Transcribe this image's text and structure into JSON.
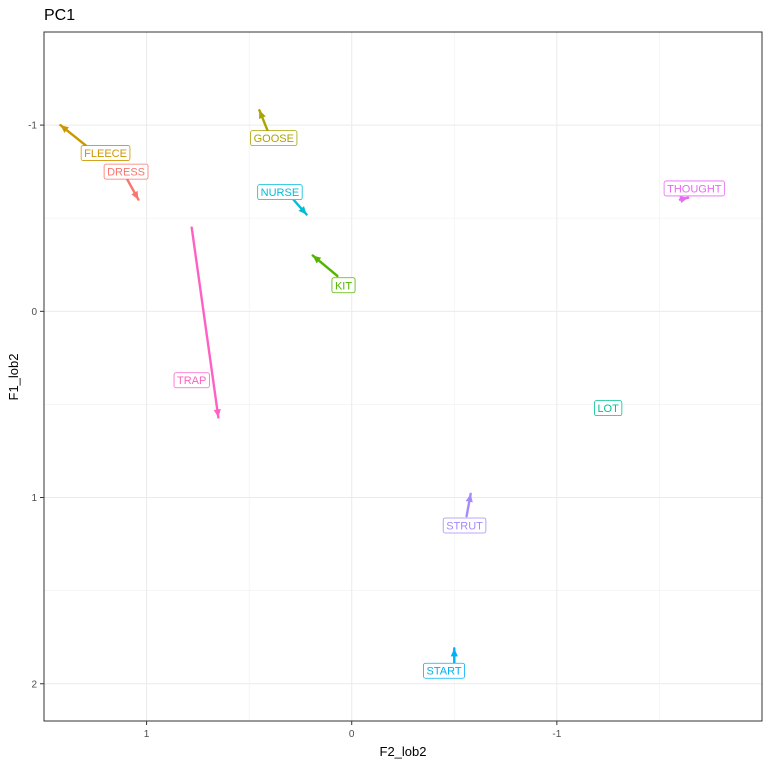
{
  "chart_data": {
    "type": "scatter",
    "title": "PC1",
    "xlabel": "F2_lob2",
    "ylabel": "F1_lob2",
    "x_reversed": true,
    "y_reversed": true,
    "xlim": [
      1.5,
      -2.0
    ],
    "ylim": [
      -1.5,
      2.2
    ],
    "x_ticks": [
      1,
      0,
      -1
    ],
    "x_tick_labels": [
      "1",
      "0",
      "-1"
    ],
    "y_ticks": [
      -1,
      0,
      1,
      2
    ],
    "y_tick_labels": [
      "-1",
      "0",
      "1",
      "2"
    ],
    "grid": true,
    "legend": "none",
    "series": [
      {
        "label": "FLEECE",
        "color": "#CD9600",
        "x_start": 1.25,
        "y_start": -0.85,
        "x_end": 1.42,
        "y_end": -1.0,
        "label_x": 1.2,
        "label_y": -0.85
      },
      {
        "label": "DRESS",
        "color": "#F8766D",
        "x_start": 1.1,
        "y_start": -0.72,
        "x_end": 1.04,
        "y_end": -0.6,
        "label_x": 1.1,
        "label_y": -0.75
      },
      {
        "label": "GOOSE",
        "color": "#ABA300",
        "x_start": 0.41,
        "y_start": -0.97,
        "x_end": 0.45,
        "y_end": -1.08,
        "label_x": 0.38,
        "label_y": -0.93
      },
      {
        "label": "NURSE",
        "color": "#00BCD8",
        "x_start": 0.3,
        "y_start": -0.62,
        "x_end": 0.22,
        "y_end": -0.52,
        "label_x": 0.35,
        "label_y": -0.64
      },
      {
        "label": "KIT",
        "color": "#53B400",
        "x_start": 0.07,
        "y_start": -0.19,
        "x_end": 0.19,
        "y_end": -0.3,
        "label_x": 0.04,
        "label_y": -0.14
      },
      {
        "label": "THOUGHT",
        "color": "#E76BF3",
        "x_start": -1.6,
        "y_start": -0.6,
        "x_end": -1.64,
        "y_end": -0.61,
        "label_x": -1.67,
        "label_y": -0.66
      },
      {
        "label": "TRAP",
        "color": "#FF61C3",
        "x_start": 0.78,
        "y_start": -0.45,
        "x_end": 0.65,
        "y_end": 0.57,
        "label_x": 0.78,
        "label_y": 0.37
      },
      {
        "label": "LOT",
        "color": "#00C094",
        "x_start": -1.25,
        "y_start": 0.52,
        "x_end": -1.25,
        "y_end": 0.52,
        "label_x": -1.25,
        "label_y": 0.52
      },
      {
        "label": "STRUT",
        "color": "#A58AFF",
        "x_start": -0.56,
        "y_start": 1.1,
        "x_end": -0.58,
        "y_end": 0.98,
        "label_x": -0.55,
        "label_y": 1.15
      },
      {
        "label": "START",
        "color": "#00B0F6",
        "x_start": -0.5,
        "y_start": 1.89,
        "x_end": -0.5,
        "y_end": 1.81,
        "label_x": -0.45,
        "label_y": 1.93
      }
    ]
  }
}
